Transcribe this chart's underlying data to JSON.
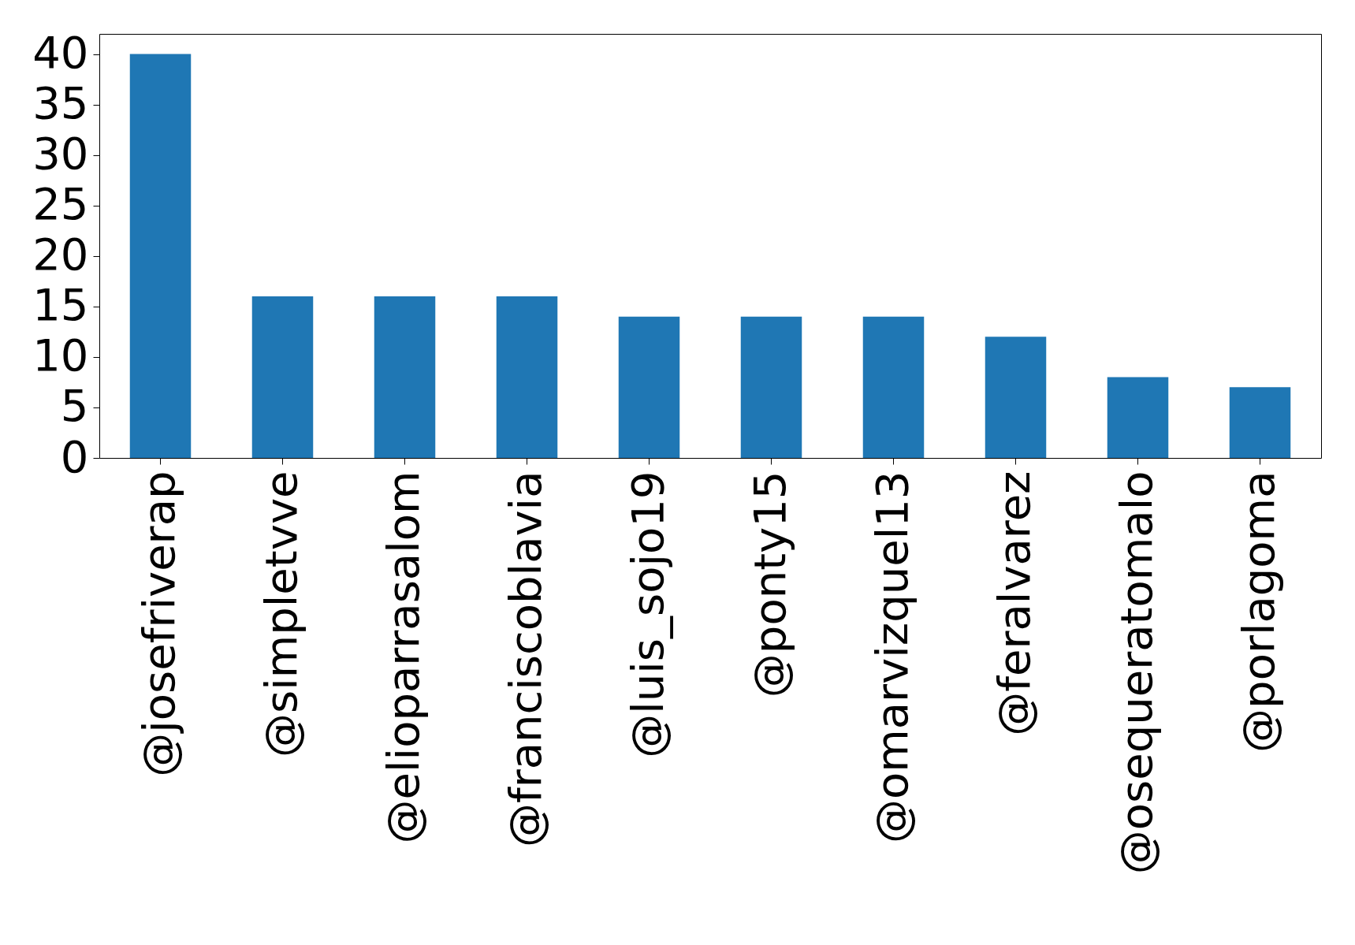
{
  "chart_data": {
    "type": "bar",
    "categories": [
      "@josefriverap",
      "@simpletvve",
      "@elioparrasalom",
      "@franciscoblavia",
      "@luis_sojo19",
      "@ponty15",
      "@omarvizquel13",
      "@feralvarez",
      "@osequeratomalo",
      "@porlagoma"
    ],
    "values": [
      40,
      16,
      16,
      16,
      14,
      14,
      14,
      12,
      8,
      7
    ],
    "color": "#1f77b4",
    "ylim": [
      0,
      42
    ],
    "yticks": [
      0,
      5,
      10,
      15,
      20,
      25,
      30,
      35,
      40
    ],
    "grid": false
  }
}
